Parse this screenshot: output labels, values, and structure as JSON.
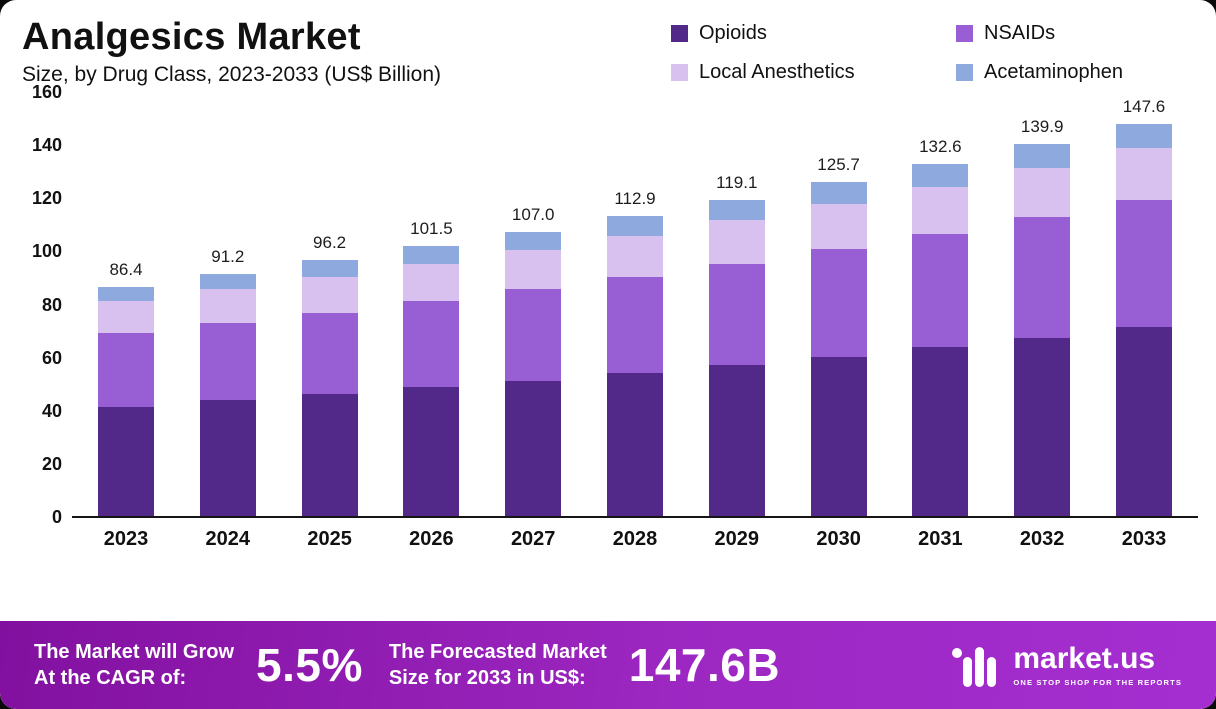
{
  "chart_data": {
    "type": "bar",
    "stacked": true,
    "title": "Analgesics Market",
    "subtitle": "Size, by Drug Class, 2023-2033 (US$ Billion)",
    "categories": [
      "2023",
      "2024",
      "2025",
      "2026",
      "2027",
      "2028",
      "2029",
      "2030",
      "2031",
      "2032",
      "2033"
    ],
    "totals": [
      86.4,
      91.2,
      96.2,
      101.5,
      107.0,
      112.9,
      119.1,
      125.7,
      132.6,
      139.9,
      147.6
    ],
    "series": [
      {
        "name": "Opioids",
        "color": "#522989",
        "values": [
          41.0,
          43.5,
          46.0,
          48.5,
          51.0,
          54.0,
          57.0,
          60.0,
          63.5,
          67.0,
          71.0
        ]
      },
      {
        "name": "NSAIDs",
        "color": "#985fd5",
        "values": [
          28.0,
          29.0,
          30.5,
          32.5,
          34.5,
          36.0,
          38.0,
          40.5,
          42.5,
          45.5,
          48.0
        ]
      },
      {
        "name": "Local Anesthetics",
        "color": "#d9c1ef",
        "values": [
          12.0,
          13.0,
          13.5,
          14.0,
          14.5,
          15.5,
          16.3,
          17.0,
          18.0,
          18.4,
          19.6
        ]
      },
      {
        "name": "Acetaminophen",
        "color": "#8ea9dd",
        "values": [
          5.4,
          5.7,
          6.2,
          6.5,
          7.0,
          7.4,
          7.8,
          8.2,
          8.6,
          9.0,
          9.0
        ]
      }
    ],
    "ylim": [
      0,
      160
    ],
    "yticks": [
      160,
      140,
      120,
      100,
      80,
      60,
      40,
      20,
      0
    ],
    "legend_position": "top-right",
    "grid": false,
    "xlabel": "",
    "ylabel": ""
  },
  "footer": {
    "cagr_label_line1": "The Market will Grow",
    "cagr_label_line2": "At the CAGR of:",
    "cagr_value": "5.5%",
    "forecast_label_line1": "The Forecasted Market",
    "forecast_label_line2": "Size for 2033 in US$:",
    "forecast_value": "147.6B",
    "brand": "market.us",
    "brand_tagline": "ONE STOP SHOP FOR THE REPORTS"
  }
}
